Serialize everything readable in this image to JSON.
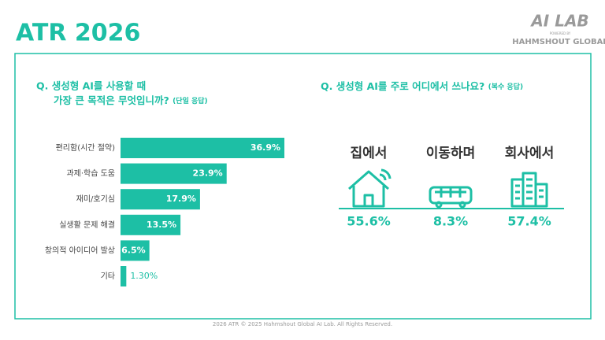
{
  "header": {
    "title": "ATR 2026",
    "logo": "AI LAB",
    "logo_sub": "POWERED BY",
    "logo_company": "HAHMSHOUT GLOBAL"
  },
  "chart_data": {
    "type": "bar",
    "title_lines": [
      "Q. 생성형 AI를 사용할 때",
      "가장 큰 목적은 무엇입니까?"
    ],
    "note": "(단일 응답)",
    "categories": [
      "편리함(시간 절약)",
      "과제·학습 도움",
      "재미/호기심",
      "실생활 문제 해결",
      "창의적 아이디어 발상",
      "기타"
    ],
    "values": [
      36.9,
      23.9,
      17.9,
      13.5,
      6.5,
      1.3
    ],
    "value_labels": [
      "36.9%",
      "23.9%",
      "17.9%",
      "13.5%",
      "6.5%",
      "1.30%"
    ],
    "color": "#1dbfa5"
  },
  "places": {
    "title": "Q. 생성형 AI를 주로 어디에서 쓰나요?",
    "note": "(복수 응답)",
    "items": [
      {
        "label": "집에서",
        "value": "55.6%"
      },
      {
        "label": "이동하며",
        "value": "8.3%"
      },
      {
        "label": "회사에서",
        "value": "57.4%"
      }
    ]
  },
  "footer": "2026 ATR © 2025 Hahmshout Global AI Lab. All Rights Reserved."
}
